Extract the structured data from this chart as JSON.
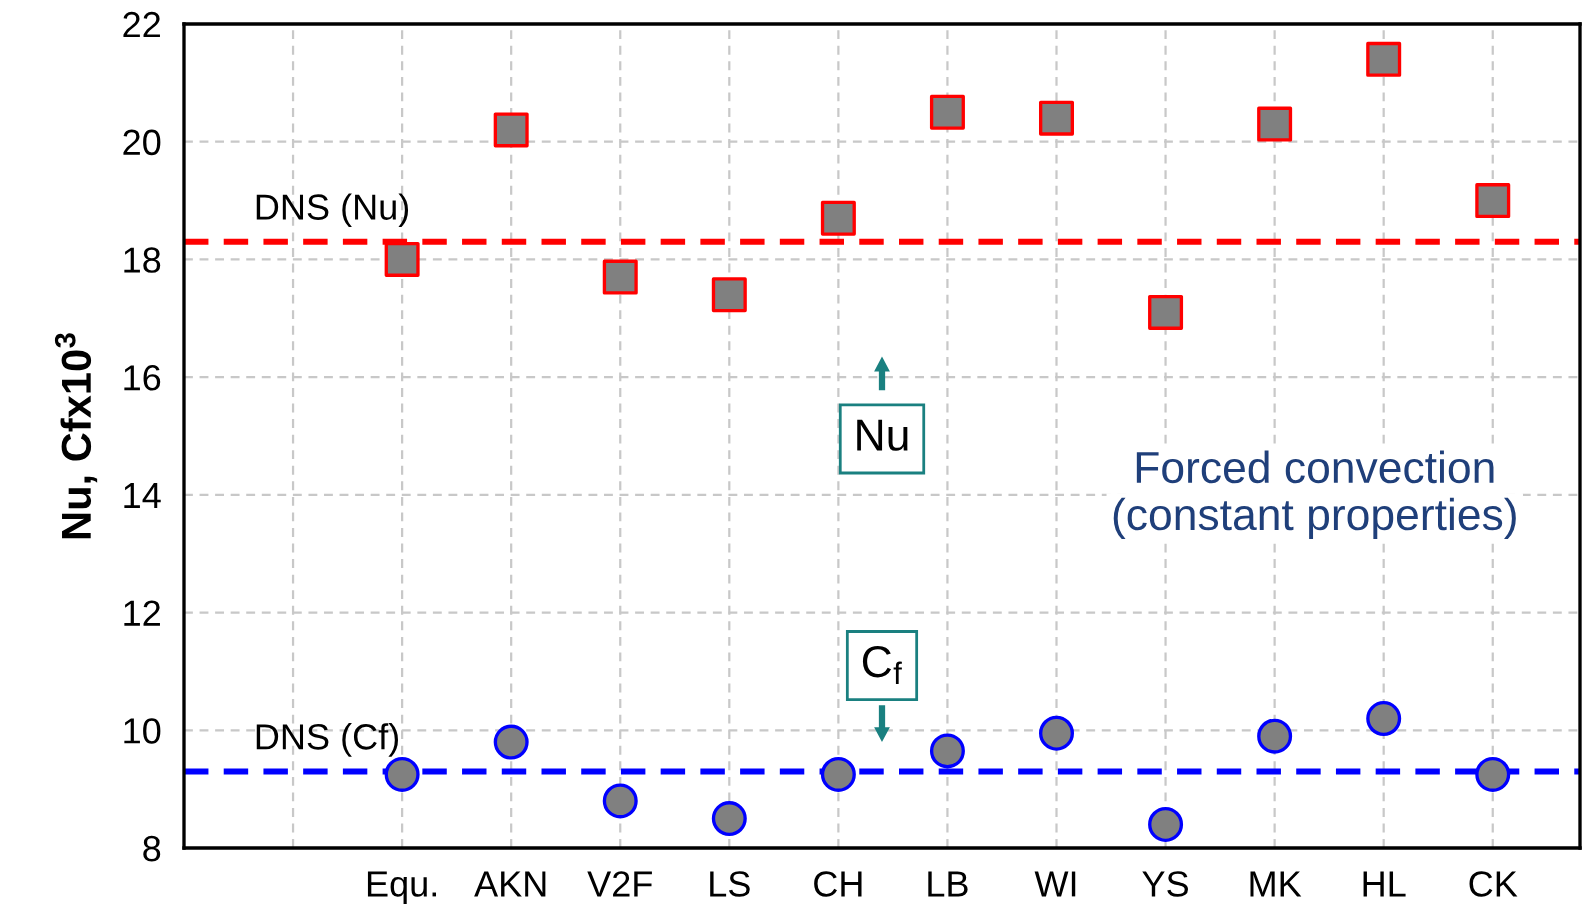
{
  "chart_data": {
    "type": "scatter",
    "ylabel": "Nu, Cfx10$^{3}$",
    "categories": [
      null,
      "Equ.",
      "AKN",
      "V2F",
      "LS",
      "CH",
      "LB",
      "WI",
      "YS",
      "MK",
      "HL",
      "CK"
    ],
    "series": [
      {
        "color": "#808080",
        "marker": "square",
        "values": [
          null,
          18.0,
          20.2,
          17.7,
          17.4,
          18.7,
          20.5,
          20.4,
          17.1,
          20.3,
          21.4,
          19.0
        ]
      },
      {
        "color": "#808080",
        "marker": "circle",
        "values": [
          null,
          9.25,
          9.8,
          8.8,
          8.5,
          9.25,
          9.65,
          9.95,
          8.4,
          9.9,
          10.2,
          9.25
        ]
      }
    ],
    "ylim": [
      8,
      22
    ],
    "yticks": [
      8,
      10,
      12,
      14,
      16,
      18,
      20,
      22
    ],
    "ref_lines": [
      {
        "axis": "y",
        "value": 18.3,
        "label": "DNS (Nu)",
        "color": "#ff0000",
        "line_style": "dashed"
      },
      {
        "axis": "y",
        "value": 9.3,
        "label": "DNS (Cf)",
        "color": "#0000ff",
        "line_style": "dashed"
      }
    ],
    "annotations": [
      "Nu",
      "C$_{f}$",
      "Forced convection",
      "(constant properties)"
    ],
    "grid": true
  }
}
